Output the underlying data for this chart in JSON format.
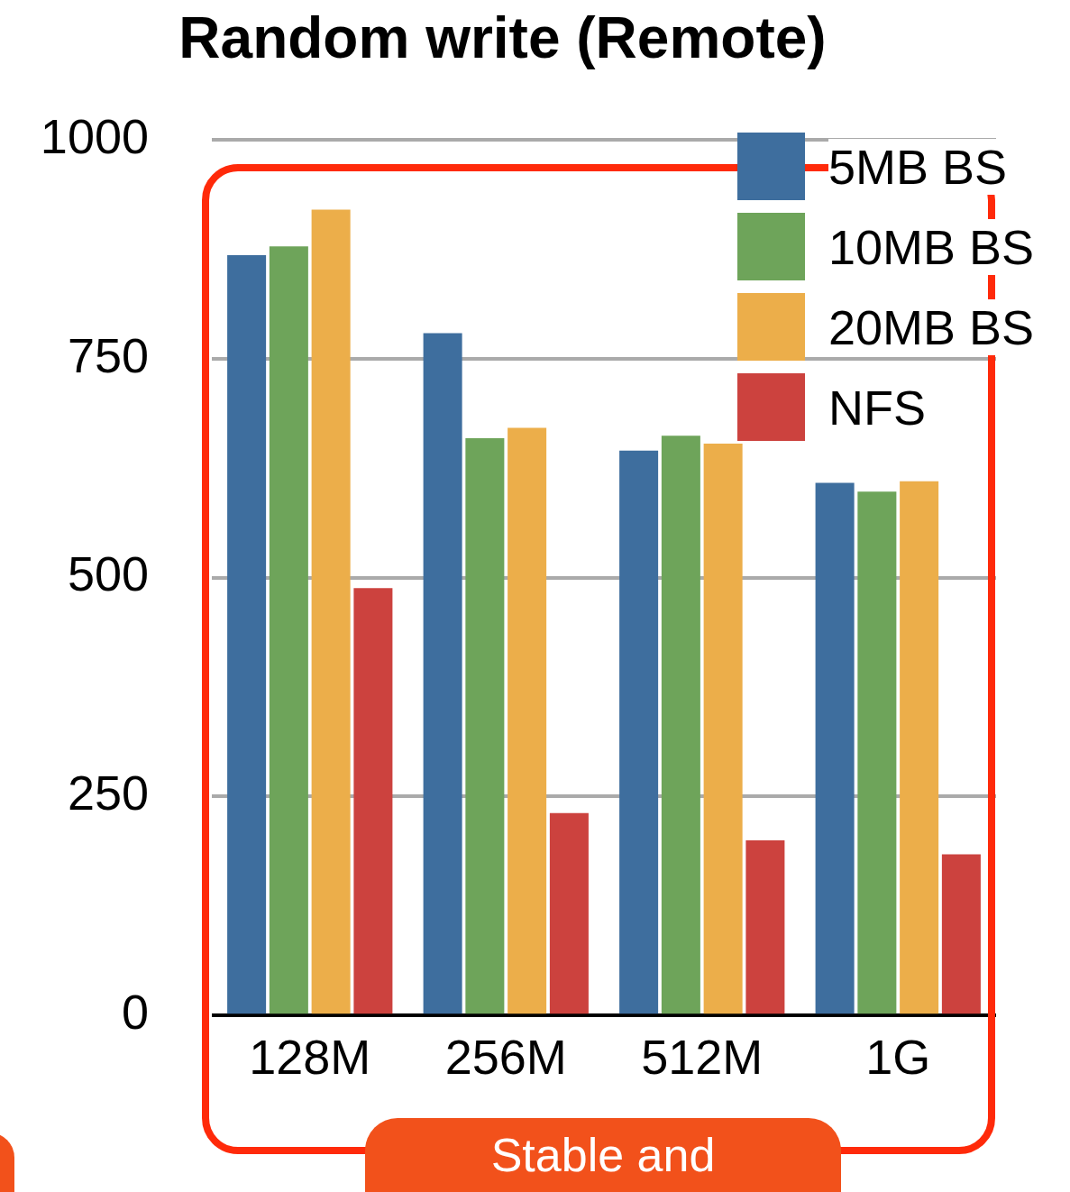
{
  "chart_data": {
    "type": "bar",
    "title": "Random write (Remote)",
    "categories": [
      "128M",
      "256M",
      "512M",
      "1G"
    ],
    "series": [
      {
        "name": "5MB BS",
        "color": "#3e6e9e",
        "values": [
          868,
          779,
          645,
          608
        ]
      },
      {
        "name": "10MB BS",
        "color": "#6ea45a",
        "values": [
          878,
          659,
          662,
          598
        ]
      },
      {
        "name": "20MB BS",
        "color": "#ecae4a",
        "values": [
          920,
          671,
          653,
          610
        ]
      },
      {
        "name": "NFS",
        "color": "#cc423e",
        "values": [
          488,
          231,
          200,
          184
        ]
      }
    ],
    "ylim": [
      0,
      1000
    ],
    "yticks": [
      0,
      250,
      500,
      750,
      1000
    ],
    "grid": "y",
    "legend": "top right",
    "annotations": [
      "Stable and"
    ]
  }
}
